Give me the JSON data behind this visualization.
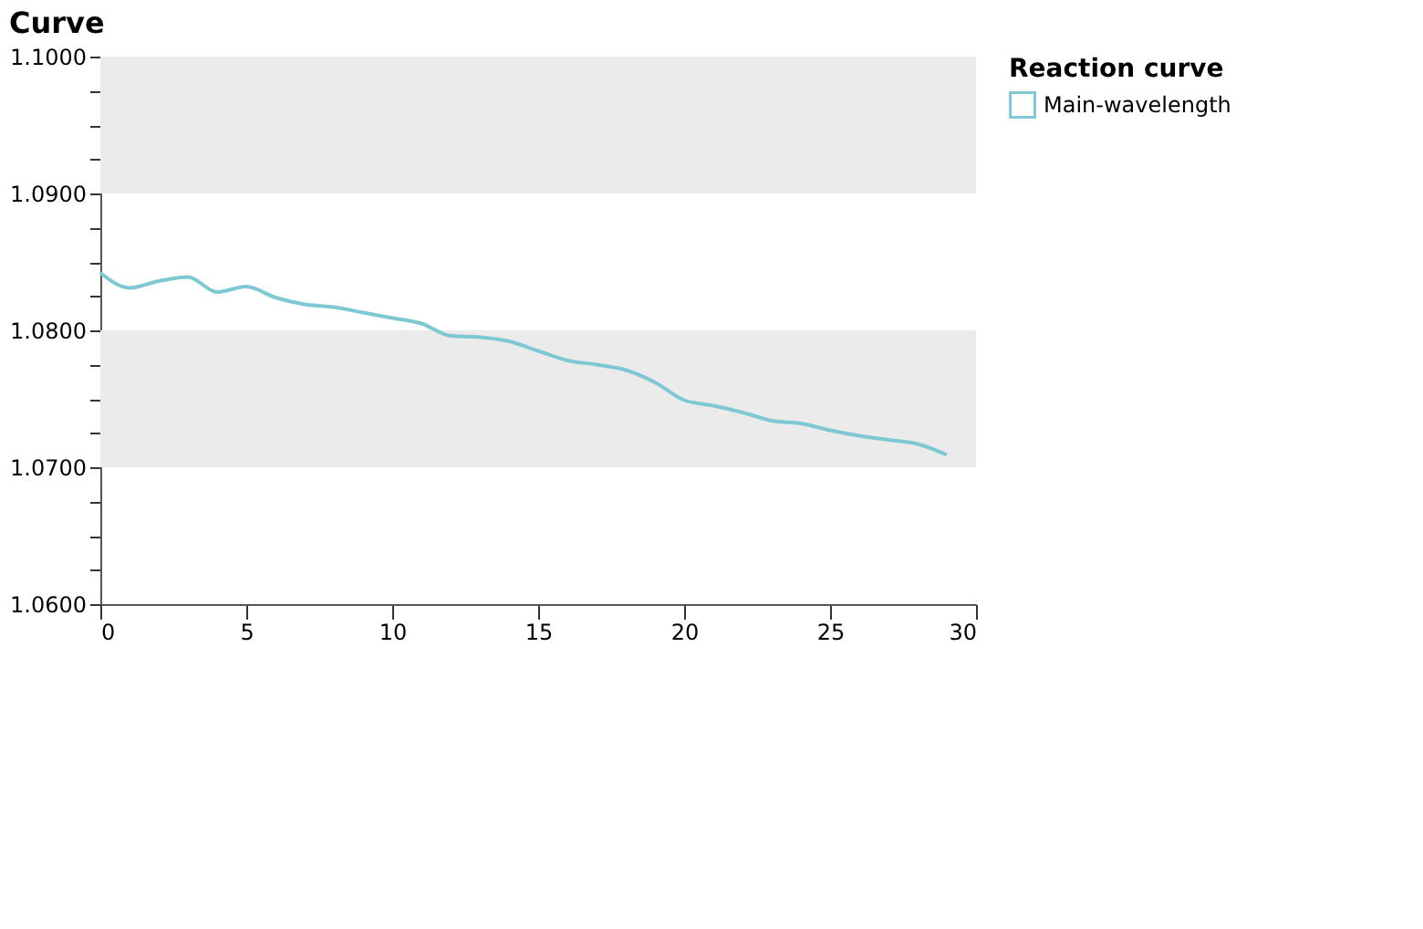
{
  "chart_data": {
    "type": "line",
    "title": "Curve",
    "legend_title": "Reaction curve",
    "legend": "right",
    "grid": false,
    "marker": "none",
    "line_style": "solid",
    "x": [
      0,
      1,
      2,
      3,
      4,
      5,
      6,
      7,
      8,
      9,
      10,
      11,
      12,
      13,
      14,
      15,
      16,
      17,
      18,
      19,
      20,
      21,
      22,
      23,
      24,
      25,
      26,
      27,
      28,
      29
    ],
    "series": [
      {
        "name": "Main-wavelength",
        "color": "#7ec8d4",
        "values": [
          1.0842,
          1.0831,
          1.0836,
          1.0839,
          1.0828,
          1.0832,
          1.0824,
          1.0819,
          1.0817,
          1.0813,
          1.0809,
          1.0805,
          1.0796,
          1.0795,
          1.0792,
          1.0785,
          1.0778,
          1.0775,
          1.0771,
          1.0762,
          1.0749,
          1.0745,
          1.074,
          1.0734,
          1.0732,
          1.0727,
          1.0723,
          1.072,
          1.0717,
          1.0709
        ]
      }
    ],
    "xlim": [
      0,
      30
    ],
    "xticks": [
      0,
      5,
      10,
      15,
      20,
      25,
      30
    ],
    "ylim": [
      1.06,
      1.1
    ],
    "yticks": [
      {
        "value": 1.06,
        "label": "1.0600"
      },
      {
        "value": 1.0625,
        "label": null
      },
      {
        "value": 1.065,
        "label": null
      },
      {
        "value": 1.0675,
        "label": null
      },
      {
        "value": 1.07,
        "label": "1.0700"
      },
      {
        "value": 1.0725,
        "label": null
      },
      {
        "value": 1.075,
        "label": null
      },
      {
        "value": 1.0775,
        "label": null
      },
      {
        "value": 1.08,
        "label": "1.0800"
      },
      {
        "value": 1.0825,
        "label": null
      },
      {
        "value": 1.085,
        "label": null
      },
      {
        "value": 1.0875,
        "label": null
      },
      {
        "value": 1.09,
        "label": "1.0900"
      },
      {
        "value": 1.0925,
        "label": null
      },
      {
        "value": 1.095,
        "label": null
      },
      {
        "value": 1.0975,
        "label": null
      },
      {
        "value": 1.1,
        "label": "1.1000"
      }
    ],
    "bands": [
      {
        "axis": "y",
        "from": 1.07,
        "to": 1.08,
        "color": "#ebebeb"
      },
      {
        "axis": "y",
        "from": 1.09,
        "to": 1.1,
        "color": "#ebebeb"
      }
    ]
  }
}
